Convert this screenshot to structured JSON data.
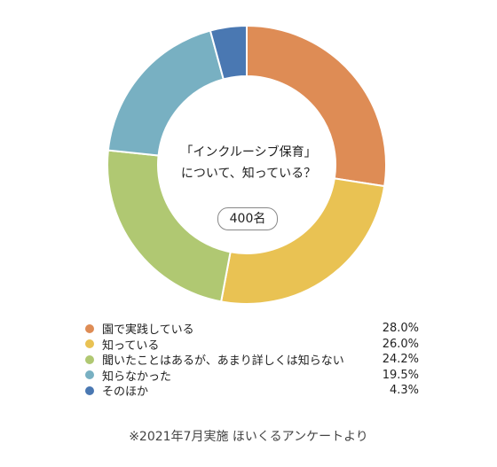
{
  "chart_data": {
    "type": "pie",
    "title_lines": [
      "「インクルーシブ保育」",
      "について、知っている？"
    ],
    "badge": "400名",
    "slices": [
      {
        "label": "園で実践している",
        "value": 28.0,
        "display": "28.0%",
        "color": "#DE8C55"
      },
      {
        "label": "知っている",
        "value": 26.0,
        "display": "26.0%",
        "color": "#E9C253"
      },
      {
        "label": "聞いたことはあるが、あまり詳しくは知らない",
        "value": 24.2,
        "display": "24.2%",
        "color": "#B0C872"
      },
      {
        "label": "知らなかった",
        "value": 19.5,
        "display": "19.5%",
        "color": "#78B0C2"
      },
      {
        "label": "そのほか",
        "value": 4.3,
        "display": "4.3%",
        "color": "#4A78B2"
      }
    ]
  },
  "footnote": "※2021年7月実施 ほいくるアンケートより"
}
